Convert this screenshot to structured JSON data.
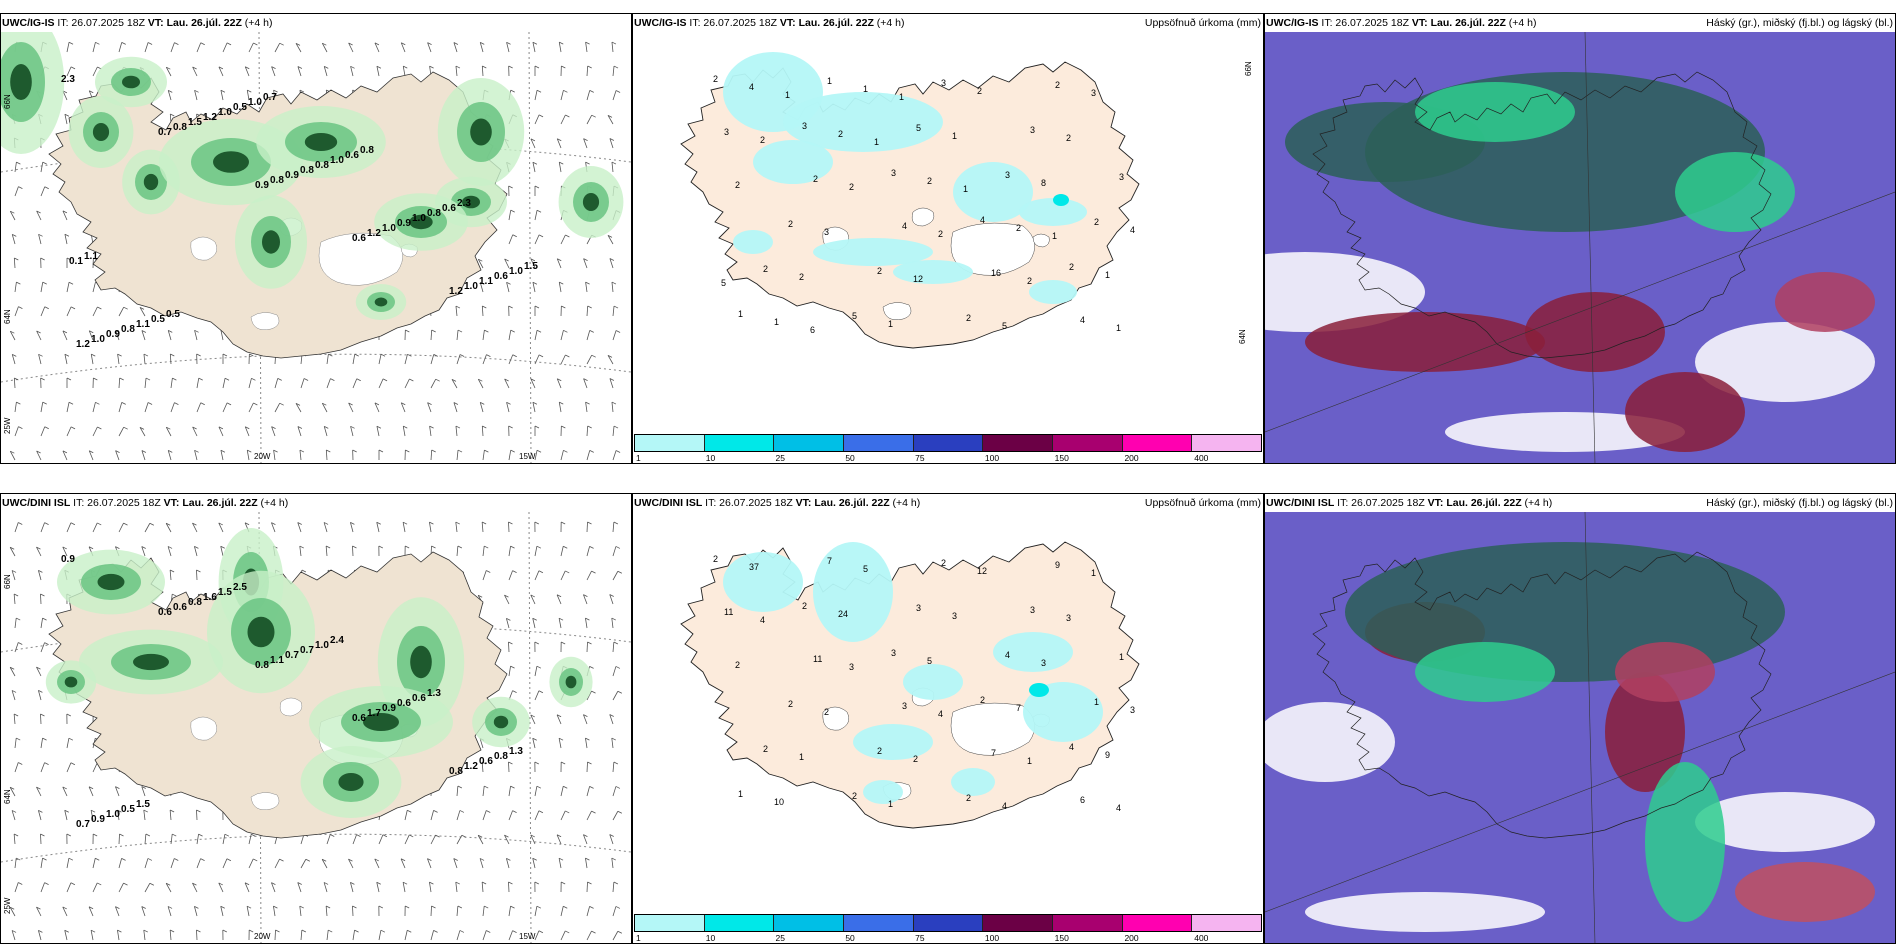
{
  "panels": {
    "p1": {
      "model": "UWC/IG-IS",
      "it": "IT: 26.07.2025 18Z",
      "vt_label": "VT:",
      "vt": "Lau. 26.júl. 22Z",
      "lead": "(+4 h)",
      "right": ""
    },
    "p2": {
      "model": "UWC/IG-IS",
      "it": "IT: 26.07.2025 18Z",
      "vt_label": "VT:",
      "vt": "Lau. 26.júl. 22Z",
      "lead": "(+4 h)",
      "right": "Uppsöfnuð úrkoma (mm)"
    },
    "p3": {
      "model": "UWC/IG-IS",
      "it": "IT: 26.07.2025 18Z",
      "vt_label": "VT:",
      "vt": "Lau. 26.júl. 22Z",
      "lead": "(+4 h)",
      "right": "Háský (gr.), miðský (fj.bl.) og lágský (bl.)"
    },
    "p4": {
      "model": "UWC/DINI ISL",
      "it": "IT: 26.07.2025 18Z",
      "vt_label": "VT:",
      "vt": "Lau. 26.júl. 22Z",
      "lead": "(+4 h)",
      "right": ""
    },
    "p5": {
      "model": "UWC/DINI ISL",
      "it": "IT: 26.07.2025 18Z",
      "vt_label": "VT:",
      "vt": "Lau. 26.júl. 22Z",
      "lead": "(+4 h)",
      "right": "Uppsöfnuð úrkoma (mm)"
    },
    "p6": {
      "model": "UWC/DINI ISL",
      "it": "IT: 26.07.2025 18Z",
      "vt_label": "VT:",
      "vt": "Lau. 26.júl. 22Z",
      "lead": "(+4 h)",
      "right": "Háský (gr.), miðský (fj.bl.) og lágský (bl.)"
    }
  },
  "axes": {
    "lat66": "66N",
    "lat64": "64N",
    "lon25": "25W",
    "lon20": "20W",
    "lon15": "15W"
  },
  "colorbar": {
    "labels": [
      "1",
      "10",
      "25",
      "50",
      "75",
      "100",
      "150",
      "200",
      "400"
    ],
    "colors": [
      "#b4f7f7",
      "#00e8e8",
      "#00bfe6",
      "#3a6ee8",
      "#2a3fbf",
      "#6b0045",
      "#a8006f",
      "#ff00b0",
      "#f5b4f0"
    ]
  },
  "precip_values_top": [
    "2",
    "3",
    "3",
    "4",
    "2",
    "1",
    "1",
    "5",
    "3",
    "2",
    "2",
    "5",
    "3",
    "3",
    "3",
    "2",
    "2",
    "2",
    "2",
    "3",
    "2",
    "4",
    "16",
    "4",
    "4",
    "2",
    "2",
    "2",
    "1",
    "1",
    "1",
    "1",
    "8",
    "4",
    "2",
    "1",
    "2",
    "2",
    "2",
    "3",
    "12",
    "5",
    "3",
    "2",
    "2",
    "2",
    "2",
    "1",
    "1",
    "1",
    "1",
    "1",
    "5",
    "6",
    "1"
  ],
  "precip_values_bot": [
    "2",
    "2",
    "3",
    "2",
    "4",
    "1",
    "7",
    "3",
    "4",
    "1",
    "2",
    "2",
    "2",
    "3",
    "1",
    "2",
    "2",
    "2",
    "9",
    "11",
    "11",
    "3",
    "7",
    "6",
    "37",
    "24",
    "5",
    "7",
    "9",
    "10",
    "5",
    "3",
    "3",
    "3",
    "1",
    "1",
    "12",
    "3",
    "2",
    "2",
    "2",
    "4",
    "1",
    "4",
    "3",
    "4",
    "1",
    "4"
  ],
  "rain_values_top": [
    "2.3",
    "0.7",
    "0.9",
    "0.6",
    "1.2",
    "1.2",
    "0.8",
    "0.8",
    "1.2",
    "1.0",
    "1.0",
    "1.5",
    "0.9",
    "1.0",
    "1.1",
    "0.9",
    "1.2",
    "0.8",
    "0.9",
    "0.6",
    "0.8",
    "1.0",
    "0.8",
    "1.0",
    "1.0",
    "1.1",
    "0.5",
    "1.0",
    "0.8",
    "1.5",
    "0.5",
    "1.0",
    "0.6",
    "0.6",
    "0.1",
    "0.5",
    "0.7",
    "0.8",
    "2.3",
    "1.1"
  ],
  "rain_values_bot": [
    "0.9",
    "0.6",
    "0.8",
    "0.6",
    "0.8",
    "0.7",
    "0.6",
    "1.1",
    "1.7",
    "1.2",
    "0.9",
    "0.8",
    "0.7",
    "0.9",
    "0.6",
    "1.0",
    "1.6",
    "0.7",
    "0.6",
    "0.8",
    "0.5",
    "1.5",
    "1.0",
    "0.6",
    "1.3",
    "1.5",
    "2.5",
    "2.4",
    "1.3"
  ]
}
